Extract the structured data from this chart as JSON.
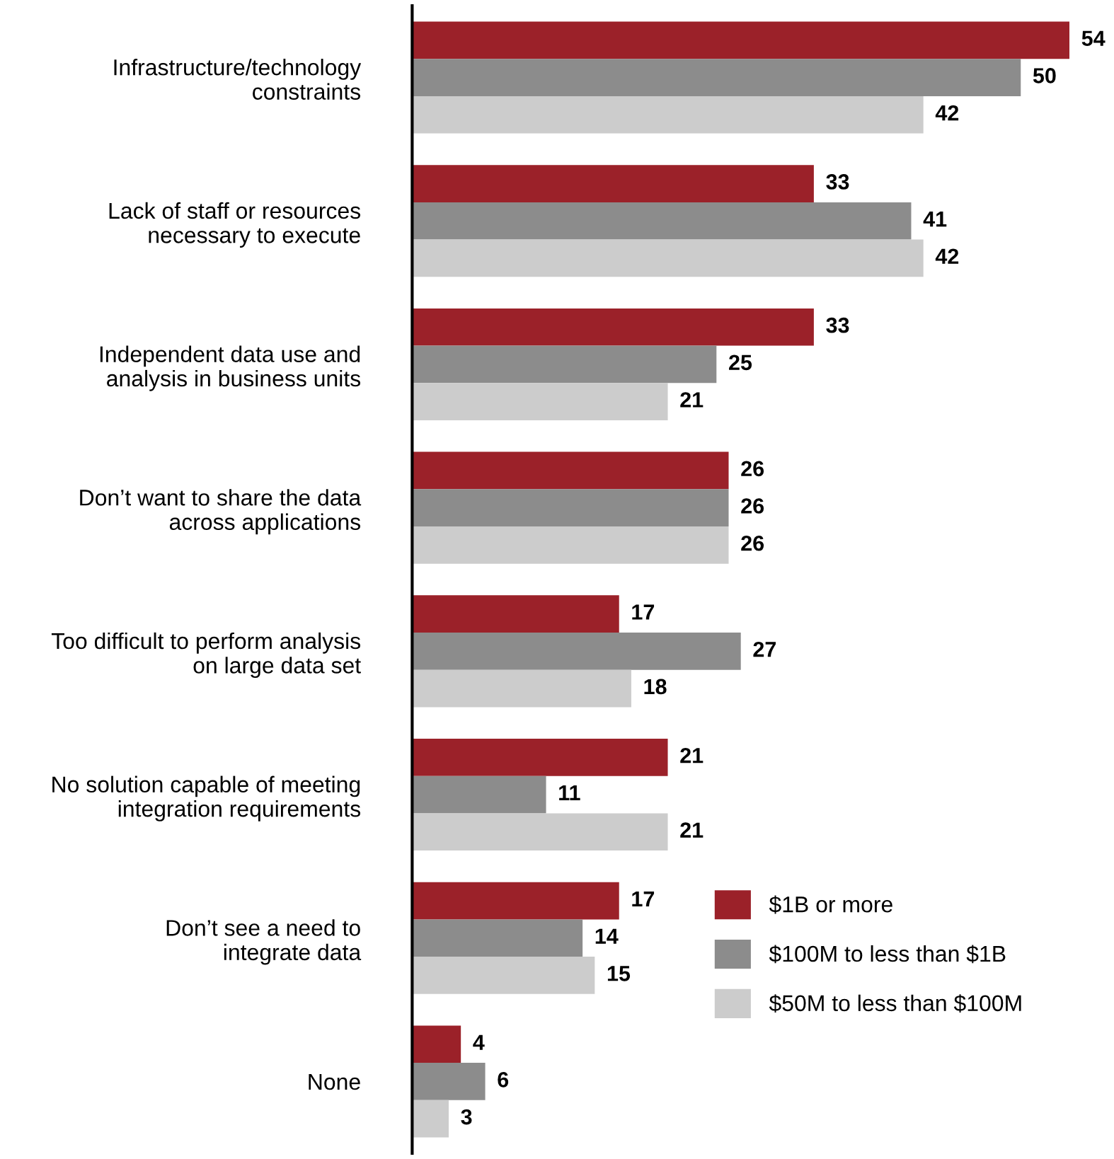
{
  "chart_data": {
    "type": "bar",
    "orientation": "horizontal",
    "data_labels": true,
    "grid": false,
    "legend": "bottom right",
    "categories": [
      "Infrastructure/technology\nconstraints",
      "Lack of staff or resources\nnecessary to execute",
      "Independent data use and\nanalysis in business units",
      "Don’t want to share the data\nacross applications",
      "Too difficult to perform analysis\non large data set",
      "No solution capable of meeting\nintegration requirements",
      "Don’t see a need to\nintegrate data",
      "None"
    ],
    "series": [
      {
        "name": "$1B or more",
        "color": "#9b2129",
        "values": [
          54,
          33,
          33,
          26,
          17,
          21,
          17,
          4
        ]
      },
      {
        "name": "$100M to less than $1B",
        "color": "#8c8c8c",
        "values": [
          50,
          41,
          25,
          26,
          27,
          11,
          14,
          6
        ]
      },
      {
        "name": "$50M to less than $100M",
        "color": "#cccccc",
        "values": [
          42,
          42,
          21,
          26,
          18,
          21,
          15,
          3
        ]
      }
    ]
  }
}
